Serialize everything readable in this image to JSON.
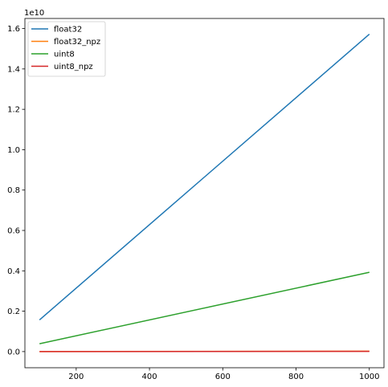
{
  "chart_data": {
    "type": "line",
    "title": "",
    "xlabel": "",
    "ylabel": "",
    "y_offset_label": "1e10",
    "xlim": [
      60,
      1040
    ],
    "ylim": [
      -0.08,
      1.65
    ],
    "y_multiplier": 10000000000,
    "x_ticks": [
      200,
      400,
      600,
      800,
      1000
    ],
    "y_ticks": [
      0.0,
      0.2,
      0.4,
      0.6,
      0.8,
      1.0,
      1.2,
      1.4,
      1.6
    ],
    "y_tick_labels": [
      "0.0",
      "0.2",
      "0.4",
      "0.6",
      "0.8",
      "1.0",
      "1.2",
      "1.4",
      "1.6"
    ],
    "legend_position": "top-left",
    "grid": false,
    "series": [
      {
        "name": "float32",
        "color": "#1f77b4",
        "x": [
          100,
          1000
        ],
        "y": [
          0.157,
          1.572
        ]
      },
      {
        "name": "float32_npz",
        "color": "#ff7f0e",
        "x": [
          100,
          1000
        ],
        "y": [
          0.0,
          0.002
        ]
      },
      {
        "name": "uint8",
        "color": "#2ca02c",
        "x": [
          100,
          1000
        ],
        "y": [
          0.039,
          0.393
        ]
      },
      {
        "name": "uint8_npz",
        "color": "#d62728",
        "x": [
          100,
          1000
        ],
        "y": [
          0.0,
          0.001
        ]
      }
    ]
  }
}
